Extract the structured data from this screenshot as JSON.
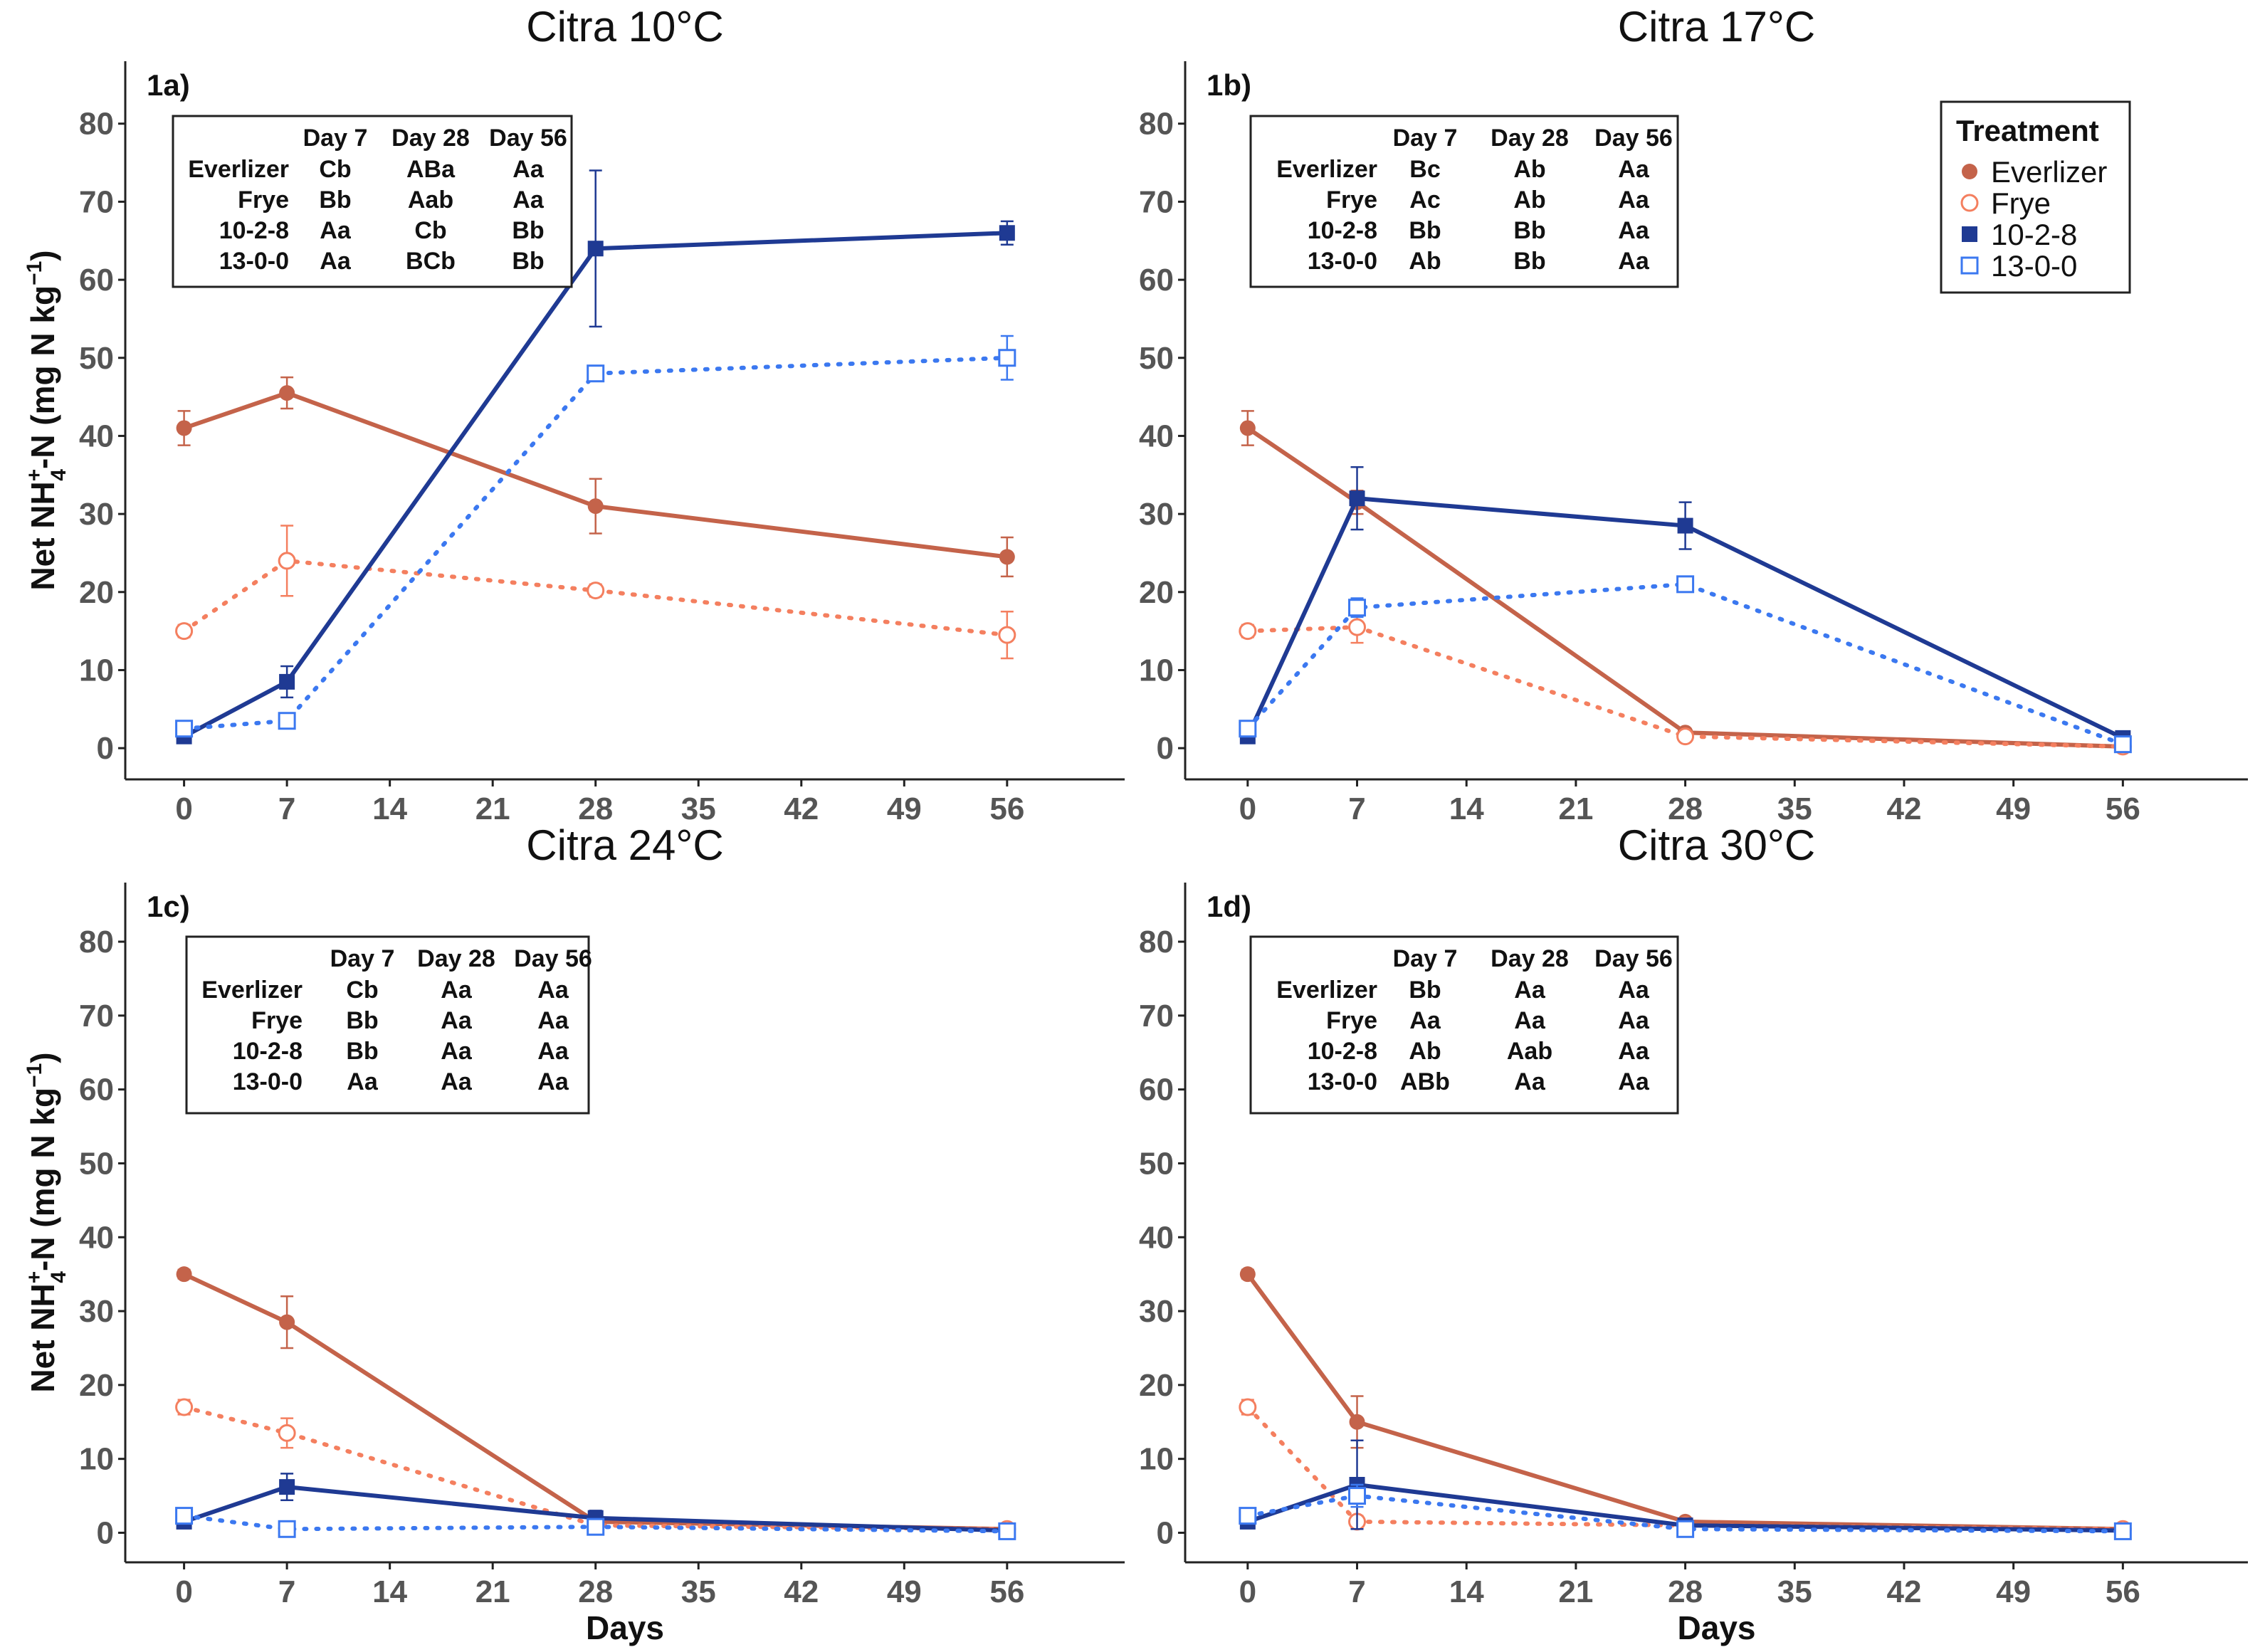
{
  "colors": {
    "everlizer": "#C4634A",
    "frye": "#F47F5F",
    "npk1028": "#1F3A93",
    "n1300": "#3B78F0"
  },
  "y_axis_label": {
    "prefix": "Net NH",
    "sup": "+",
    "sub": "4",
    "middle": "-N (mg N kg",
    "unit_sup": "−1",
    "suffix": ")"
  },
  "legend": {
    "title": "Treatment",
    "items": [
      {
        "label": "Everlizer",
        "series": "Everlizer"
      },
      {
        "label": "Frye",
        "series": "Frye"
      },
      {
        "label": "10-2-8",
        "series": "10-2-8"
      },
      {
        "label": "13-0-0",
        "series": "13-0-0"
      }
    ]
  },
  "chart_data": [
    {
      "type": "line",
      "panel_label": "1a)",
      "title": "Citra 10°C",
      "xlabel": "",
      "ylabel": "Net NH4+-N (mg N kg-1)",
      "x_ticks": [
        0,
        7,
        14,
        21,
        28,
        35,
        42,
        49,
        56
      ],
      "y_ticks": [
        0,
        10,
        20,
        30,
        40,
        50,
        60,
        70,
        80
      ],
      "xlim": [
        -4,
        64
      ],
      "ylim": [
        -4,
        88
      ],
      "x": [
        0,
        7,
        28,
        56
      ],
      "series": [
        {
          "name": "Everlizer",
          "values": [
            41,
            45.5,
            31,
            24.5
          ],
          "error": [
            2.2,
            2,
            3.5,
            2.5
          ]
        },
        {
          "name": "Frye",
          "values": [
            15,
            24,
            20.2,
            14.5
          ],
          "error": [
            0.8,
            4.5,
            0.8,
            3
          ]
        },
        {
          "name": "10-2-8",
          "values": [
            1.5,
            8.5,
            64,
            66
          ],
          "error": [
            0.5,
            2,
            10,
            1.5
          ]
        },
        {
          "name": "13-0-0",
          "values": [
            2.5,
            3.5,
            48,
            50
          ],
          "error": [
            0.5,
            0.8,
            1,
            2.8
          ]
        }
      ],
      "table": {
        "headers": [
          "Day 7",
          "Day 28",
          "Day 56"
        ],
        "rows": [
          {
            "name": "Everlizer",
            "cells": [
              "Cb",
              "ABa",
              "Aa"
            ]
          },
          {
            "name": "Frye",
            "cells": [
              "Bb",
              "Aab",
              "Aa"
            ]
          },
          {
            "name": "10-2-8",
            "cells": [
              "Aa",
              "Cb",
              "Bb"
            ]
          },
          {
            "name": "13-0-0",
            "cells": [
              "Aa",
              "BCb",
              "Bb"
            ]
          }
        ]
      }
    },
    {
      "type": "line",
      "panel_label": "1b)",
      "title": "Citra 17°C",
      "xlabel": "",
      "ylabel": "",
      "x_ticks": [
        0,
        7,
        14,
        21,
        28,
        35,
        42,
        49,
        56
      ],
      "y_ticks": [
        0,
        10,
        20,
        30,
        40,
        50,
        60,
        70,
        80
      ],
      "xlim": [
        -4,
        64
      ],
      "ylim": [
        -4,
        88
      ],
      "x": [
        0,
        7,
        28,
        56
      ],
      "series": [
        {
          "name": "Everlizer",
          "values": [
            41,
            31.5,
            2,
            0.2
          ],
          "error": [
            2.2,
            1.5,
            0.5,
            0.3
          ]
        },
        {
          "name": "Frye",
          "values": [
            15,
            15.5,
            1.5,
            0.2
          ],
          "error": [
            0.8,
            2,
            0.4,
            0.3
          ]
        },
        {
          "name": "10-2-8",
          "values": [
            1.5,
            32,
            28.5,
            1.3
          ],
          "error": [
            0.5,
            4,
            3,
            0.4
          ]
        },
        {
          "name": "13-0-0",
          "values": [
            2.5,
            18,
            21,
            0.5
          ],
          "error": [
            0.5,
            1.2,
            1,
            0.3
          ]
        }
      ],
      "table": {
        "headers": [
          "Day 7",
          "Day 28",
          "Day 56"
        ],
        "rows": [
          {
            "name": "Everlizer",
            "cells": [
              "Bc",
              "Ab",
              "Aa"
            ]
          },
          {
            "name": "Frye",
            "cells": [
              "Ac",
              "Ab",
              "Aa"
            ]
          },
          {
            "name": "10-2-8",
            "cells": [
              "Bb",
              "Bb",
              "Aa"
            ]
          },
          {
            "name": "13-0-0",
            "cells": [
              "Ab",
              "Bb",
              "Aa"
            ]
          }
        ]
      }
    },
    {
      "type": "line",
      "panel_label": "1c)",
      "title": "Citra 24°C",
      "xlabel": "Days",
      "ylabel": "Net NH4+-N (mg N kg-1)",
      "x_ticks": [
        0,
        7,
        14,
        21,
        28,
        35,
        42,
        49,
        56
      ],
      "y_ticks": [
        0,
        10,
        20,
        30,
        40,
        50,
        60,
        70,
        80
      ],
      "xlim": [
        -4,
        64
      ],
      "ylim": [
        -4,
        88
      ],
      "x": [
        0,
        7,
        28,
        56
      ],
      "series": [
        {
          "name": "Everlizer",
          "values": [
            35,
            28.5,
            1.5,
            0.5
          ],
          "error": [
            0.6,
            3.5,
            0.5,
            0.3
          ]
        },
        {
          "name": "Frye",
          "values": [
            17,
            13.5,
            1,
            0.5
          ],
          "error": [
            1,
            2,
            0.4,
            0.3
          ]
        },
        {
          "name": "10-2-8",
          "values": [
            1.5,
            6.2,
            2,
            0.3
          ],
          "error": [
            0.5,
            1.8,
            1,
            0.3
          ]
        },
        {
          "name": "13-0-0",
          "values": [
            2.3,
            0.5,
            0.8,
            0.2
          ],
          "error": [
            0.5,
            0.3,
            0.3,
            0.2
          ]
        }
      ],
      "table": {
        "headers": [
          "Day 7",
          "Day 28",
          "Day 56"
        ],
        "rows": [
          {
            "name": "Everlizer",
            "cells": [
              "Cb",
              "Aa",
              "Aa"
            ]
          },
          {
            "name": "Frye",
            "cells": [
              "Bb",
              "Aa",
              "Aa"
            ]
          },
          {
            "name": "10-2-8",
            "cells": [
              "Bb",
              "Aa",
              "Aa"
            ]
          },
          {
            "name": "13-0-0",
            "cells": [
              "Aa",
              "Aa",
              "Aa"
            ]
          }
        ]
      }
    },
    {
      "type": "line",
      "panel_label": "1d)",
      "title": "Citra 30°C",
      "xlabel": "Days",
      "ylabel": "",
      "x_ticks": [
        0,
        7,
        14,
        21,
        28,
        35,
        42,
        49,
        56
      ],
      "y_ticks": [
        0,
        10,
        20,
        30,
        40,
        50,
        60,
        70,
        80
      ],
      "xlim": [
        -4,
        64
      ],
      "ylim": [
        -4,
        88
      ],
      "x": [
        0,
        7,
        28,
        56
      ],
      "series": [
        {
          "name": "Everlizer",
          "values": [
            35,
            15,
            1.5,
            0.5
          ],
          "error": [
            0.6,
            3.5,
            0.5,
            0.3
          ]
        },
        {
          "name": "Frye",
          "values": [
            17,
            1.5,
            1,
            0.5
          ],
          "error": [
            1,
            0.8,
            0.4,
            0.3
          ]
        },
        {
          "name": "10-2-8",
          "values": [
            1.5,
            6.5,
            1,
            0.3
          ],
          "error": [
            0.5,
            6,
            0.5,
            0.3
          ]
        },
        {
          "name": "13-0-0",
          "values": [
            2.3,
            5,
            0.5,
            0.2
          ],
          "error": [
            0.5,
            1.5,
            0.3,
            0.2
          ]
        }
      ],
      "table": {
        "headers": [
          "Day 7",
          "Day 28",
          "Day 56"
        ],
        "rows": [
          {
            "name": "Everlizer",
            "cells": [
              "Bb",
              "Aa",
              "Aa"
            ]
          },
          {
            "name": "Frye",
            "cells": [
              "Aa",
              "Aa",
              "Aa"
            ]
          },
          {
            "name": "10-2-8",
            "cells": [
              "Ab",
              "Aab",
              "Aa"
            ]
          },
          {
            "name": "13-0-0",
            "cells": [
              "ABb",
              "Aa",
              "Aa"
            ]
          }
        ]
      }
    }
  ]
}
